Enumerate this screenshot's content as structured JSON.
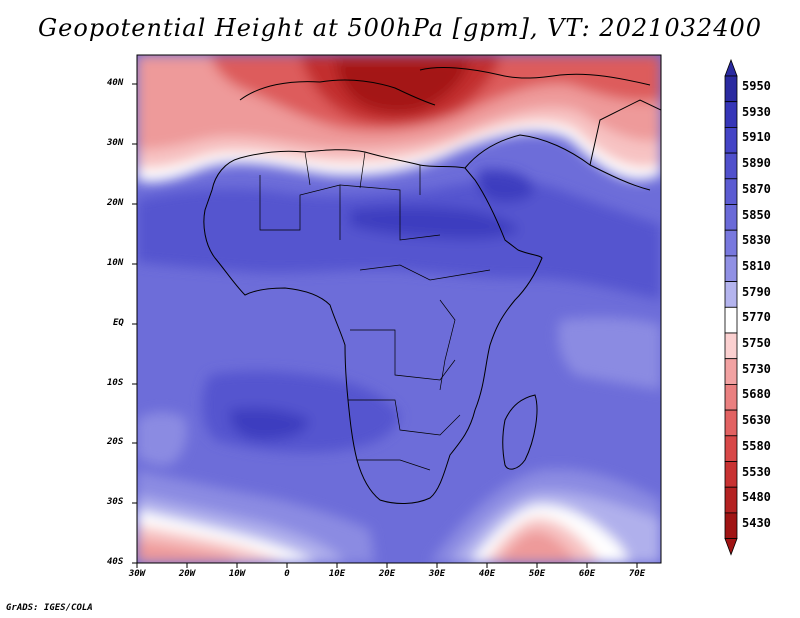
{
  "title": "Geopotential Height at 500hPa [gpm], VT: 2021032400",
  "credit": "GrADS: IGES/COLA",
  "axes": {
    "lat_labels": [
      "40N",
      "30N",
      "20N",
      "10N",
      "EQ",
      "10S",
      "20S",
      "30S",
      "40S"
    ],
    "lon_labels": [
      "30W",
      "20W",
      "10W",
      "0",
      "10E",
      "20E",
      "30E",
      "40E",
      "50E",
      "60E",
      "70E"
    ]
  },
  "legend": {
    "levels": [
      "5950",
      "5930",
      "5910",
      "5890",
      "5870",
      "5850",
      "5830",
      "5810",
      "5790",
      "5770",
      "5750",
      "5730",
      "5680",
      "5630",
      "5580",
      "5530",
      "5480",
      "5430"
    ],
    "colors": [
      "#2a2aa0",
      "#3636b8",
      "#4444c6",
      "#5050cc",
      "#5c5cd2",
      "#6a6ad8",
      "#7878de",
      "#9090e4",
      "#b4b4ee",
      "#ffffff",
      "#fbd0d0",
      "#f2a2a2",
      "#ea8080",
      "#e26262",
      "#d84848",
      "#c83232",
      "#b42222",
      "#a01414"
    ]
  },
  "map_colors": {
    "deep_purple": "#3c3cbf",
    "purple": "#5555cf",
    "mid_purple": "#6d6dd9",
    "light_purple": "#8b8be2",
    "lavender": "#b0b0ec",
    "white": "#ffffff",
    "light_pink": "#f7c2c2",
    "pink": "#ee9a9a",
    "red": "#dd5c5c",
    "dark_red": "#c22e2e",
    "deepest_red": "#a41818"
  }
}
